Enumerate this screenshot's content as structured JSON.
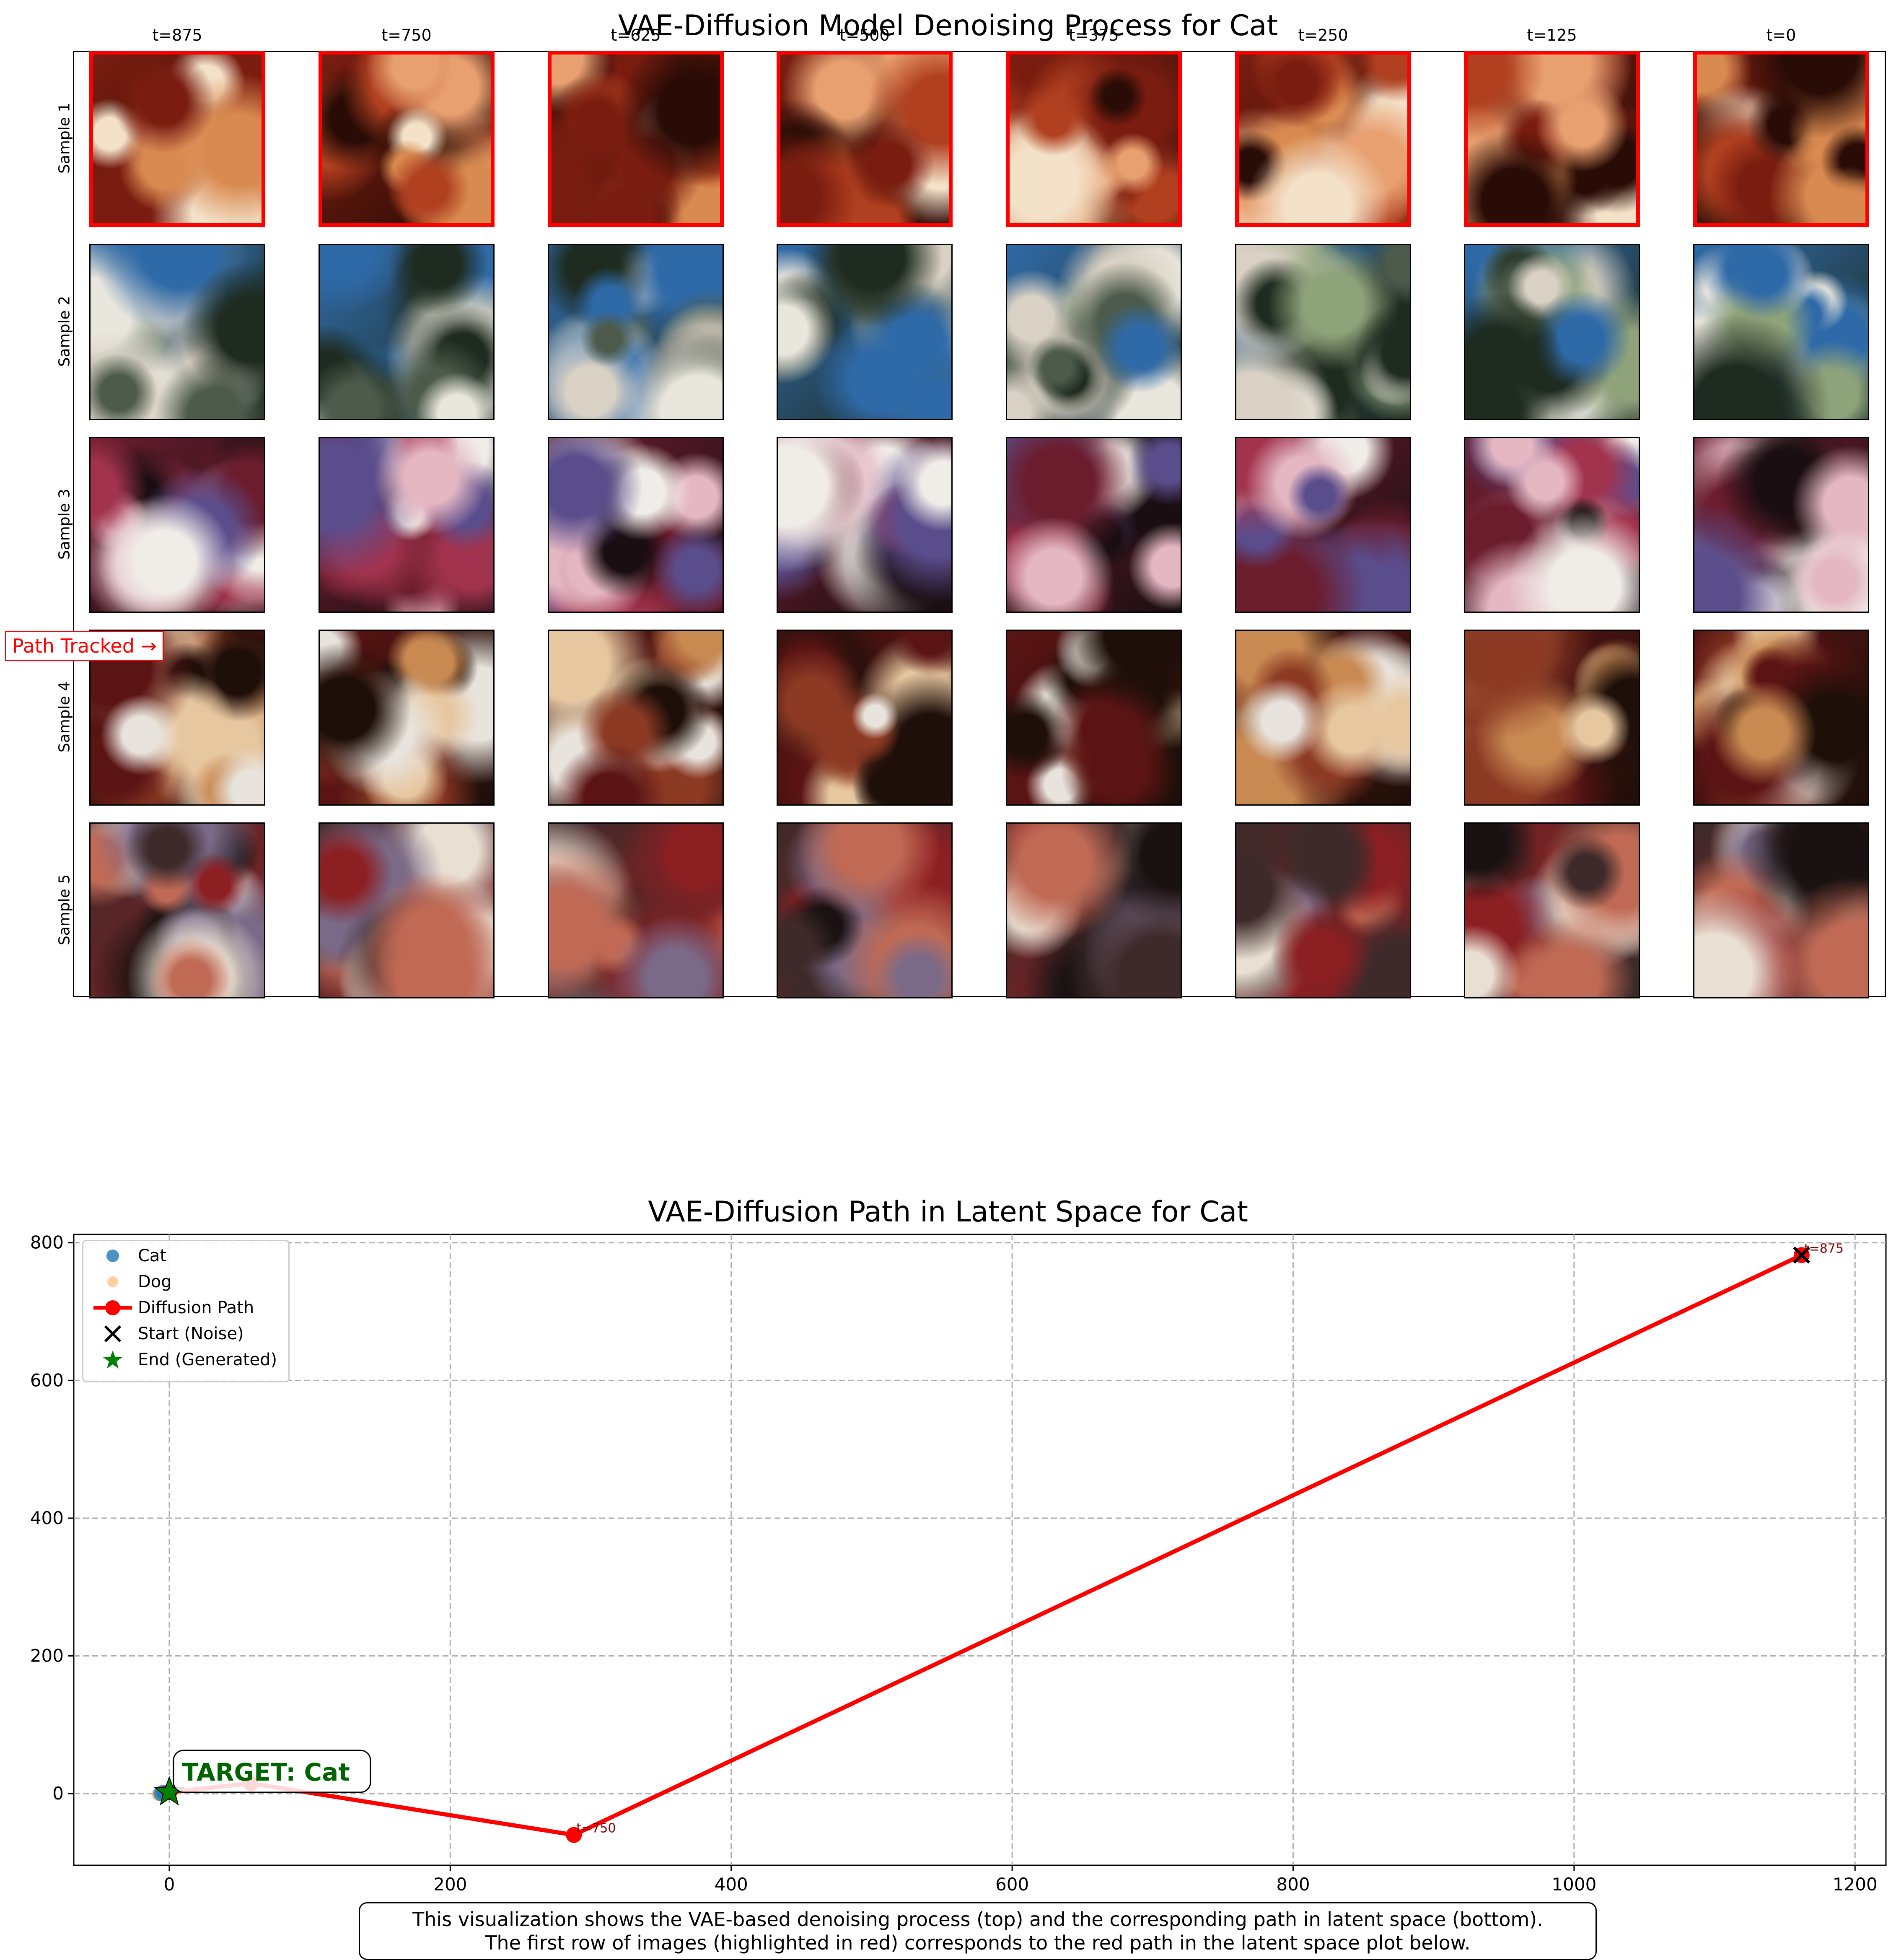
{
  "denoising": {
    "title": "VAE-Diffusion Model Denoising Process for Cat",
    "timesteps": [
      "t=875",
      "t=750",
      "t=625",
      "t=500",
      "t=375",
      "t=250",
      "t=125",
      "t=0"
    ],
    "samples": [
      "Sample 1",
      "Sample 2",
      "Sample 3",
      "Sample 4",
      "Sample 5"
    ],
    "highlighted_sample": "Sample 1",
    "path_tracked_label": "Path Tracked →",
    "highlight_color": "#ff0000"
  },
  "chart_data": {
    "type": "scatter",
    "title": "VAE-Diffusion Path in Latent Space for Cat",
    "xlabel": "",
    "ylabel": "",
    "xlim": [
      -68,
      1222
    ],
    "ylim": [
      -104,
      812
    ],
    "xticks": [
      0,
      200,
      400,
      600,
      800,
      1000,
      1200
    ],
    "yticks": [
      0,
      200,
      400,
      600,
      800
    ],
    "grid": true,
    "legend_position": "top-left",
    "series": [
      {
        "name": "Cat",
        "kind": "scatter",
        "color": "#1f77b4",
        "points": [
          [
            -6,
            0
          ],
          [
            -4,
            2
          ],
          [
            -2,
            1
          ]
        ]
      },
      {
        "name": "Dog",
        "kind": "scatter",
        "color": "#ffbb78",
        "points": [
          [
            -8,
            -1
          ],
          [
            -5,
            0
          ]
        ]
      },
      {
        "name": "Diffusion Path",
        "kind": "line",
        "color": "#ff0000",
        "points": [
          [
            1162,
            782
          ],
          [
            288,
            -60
          ],
          [
            58,
            15
          ],
          [
            0,
            2
          ]
        ]
      },
      {
        "name": "Start (Noise)",
        "kind": "marker-x",
        "color": "#000000",
        "points": [
          [
            1162,
            782
          ]
        ]
      },
      {
        "name": "End (Generated)",
        "kind": "marker-star",
        "color": "#008000",
        "points": [
          [
            0,
            2
          ]
        ]
      }
    ],
    "annotations": [
      {
        "text": "t=875",
        "x": 1162,
        "y": 782,
        "color": "#8b0000"
      },
      {
        "text": "t=750",
        "x": 288,
        "y": -60,
        "color": "#8b0000"
      }
    ],
    "target_label": "TARGET: Cat",
    "target_color": "#006400"
  },
  "caption": {
    "line1": "This visualization shows the VAE-based denoising process (top) and the corresponding path in latent space (bottom).",
    "line2": "The first row of images (highlighted in red) corresponds to the red path in the latent space plot below."
  }
}
